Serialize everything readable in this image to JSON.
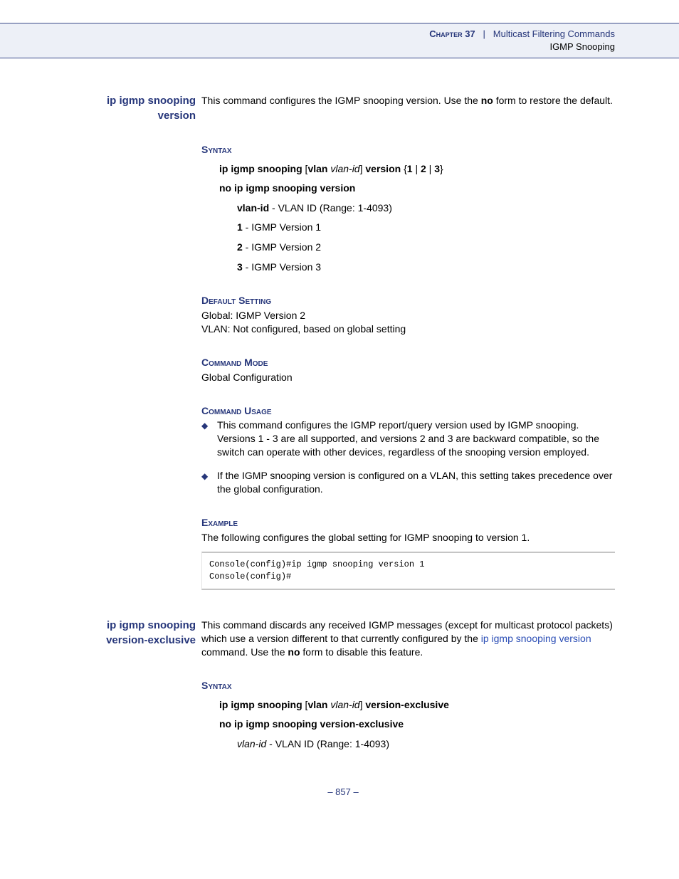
{
  "header": {
    "chapter_label": "Chapter 37",
    "separator": "|",
    "chapter_title": "Multicast Filtering Commands",
    "subtitle": "IGMP Snooping"
  },
  "cmd1": {
    "name_line1": "ip igmp snooping",
    "name_line2": "version",
    "intro_a": "This command configures the IGMP snooping version. Use the ",
    "intro_b": "no",
    "intro_c": " form to restore the default.",
    "syntax_heading": "Syntax",
    "syntax1_a": "ip igmp snooping",
    "syntax1_b": " [",
    "syntax1_c": "vlan",
    "syntax1_d": " ",
    "syntax1_e": "vlan-id",
    "syntax1_f": "] ",
    "syntax1_g": "version",
    "syntax1_h": " {",
    "syntax1_i": "1",
    "syntax1_j": " | ",
    "syntax1_k": "2",
    "syntax1_l": " | ",
    "syntax1_m": "3",
    "syntax1_n": "}",
    "syntax2": "no ip igmp snooping version",
    "param1_a": "vlan-id",
    "param1_b": " - VLAN ID (Range: 1-4093)",
    "param2_a": "1",
    "param2_b": " - IGMP Version 1",
    "param3_a": "2",
    "param3_b": " - IGMP Version 2",
    "param4_a": "3",
    "param4_b": " - IGMP Version 3",
    "default_heading": "Default Setting",
    "default1": "Global: IGMP Version 2",
    "default2": "VLAN: Not configured, based on global setting",
    "mode_heading": "Command Mode",
    "mode_text": "Global Configuration",
    "usage_heading": "Command Usage",
    "usage1": "This command configures the IGMP report/query version used by IGMP snooping. Versions 1 - 3 are all supported, and versions 2 and 3 are backward compatible, so the switch can operate with other devices, regardless of the snooping version employed.",
    "usage2": "If the IGMP snooping version is configured on a VLAN, this setting takes precedence over the global configuration.",
    "example_heading": "Example",
    "example_text": "The following configures the global setting for IGMP snooping to version 1.",
    "code": "Console(config)#ip igmp snooping version 1\nConsole(config)#"
  },
  "cmd2": {
    "name_line1": "ip igmp snooping",
    "name_line2": "version-exclusive",
    "intro_a": "This command discards any received IGMP messages (except for multicast protocol packets) which use a version different to that currently configured by the ",
    "intro_link": "ip igmp snooping version",
    "intro_b": " command. Use the ",
    "intro_c": "no",
    "intro_d": " form to disable this feature.",
    "syntax_heading": "Syntax",
    "syntax1_a": "ip igmp snooping",
    "syntax1_b": " [",
    "syntax1_c": "vlan",
    "syntax1_d": " ",
    "syntax1_e": "vlan-id",
    "syntax1_f": "] ",
    "syntax1_g": "version-exclusive",
    "syntax2": "no ip igmp snooping version-exclusive",
    "param1_a": "vlan-id",
    "param1_b": " - VLAN ID (Range: 1-4093)"
  },
  "footer": {
    "page": "– 857 –"
  },
  "colors": {
    "brand": "#26367a",
    "link": "#2a4db5",
    "band_bg": "#edf0f7"
  }
}
